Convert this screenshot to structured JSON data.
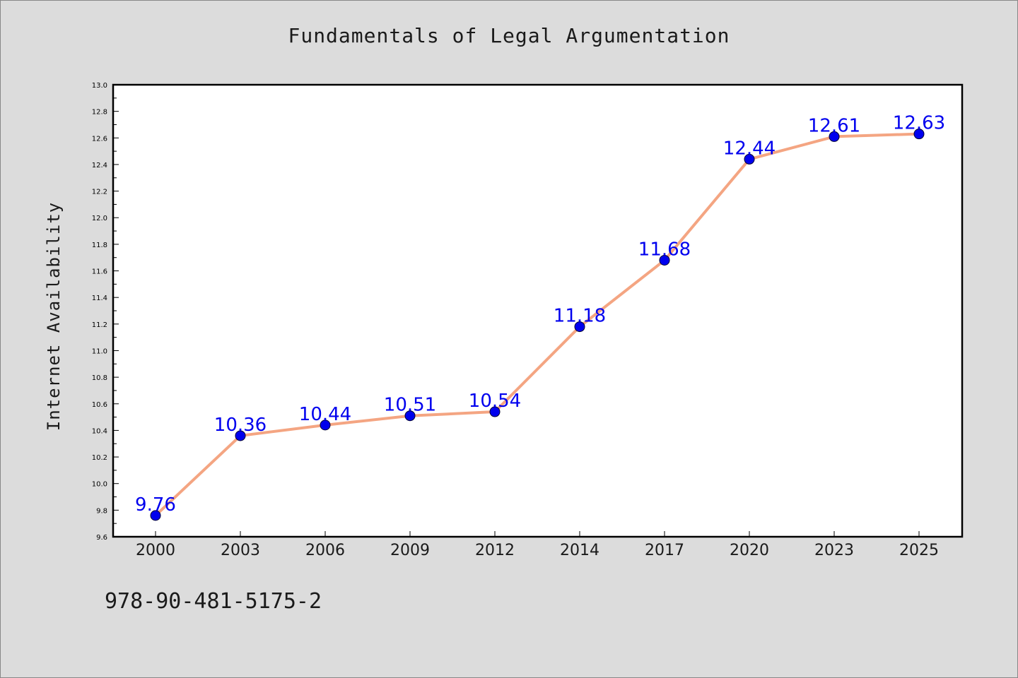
{
  "chart_data": {
    "type": "line",
    "title": "Fundamentals of Legal Argumentation",
    "ylabel": "Internet Availability",
    "xlabel": "",
    "categories": [
      "2000",
      "2003",
      "2006",
      "2009",
      "2012",
      "2014",
      "2017",
      "2020",
      "2023",
      "2025"
    ],
    "values": [
      9.76,
      10.36,
      10.44,
      10.51,
      10.54,
      11.18,
      11.68,
      12.44,
      12.61,
      12.63
    ],
    "data_labels": [
      "9.76",
      "10.36",
      "10.44",
      "10.51",
      "10.54",
      "11.18",
      "11.68",
      "12.44",
      "12.61",
      "12.63"
    ],
    "ylim": [
      9.6,
      13.0
    ],
    "ytick_labels": [
      "9.6",
      "9.8",
      "10.0",
      "10.2",
      "10.4",
      "10.6",
      "10.8",
      "11.0",
      "11.2",
      "11.4",
      "11.6",
      "11.8",
      "12.0",
      "12.2",
      "12.4",
      "12.6",
      "12.8",
      "13.0"
    ],
    "grid": false,
    "legend": "none",
    "colors": {
      "line": "#f4a582",
      "marker": "#0000ee",
      "label": "#0000ee",
      "background": "#dcdcdc",
      "plot_area": "#ffffff"
    }
  },
  "footer": {
    "isbn": "978-90-481-5175-2"
  }
}
